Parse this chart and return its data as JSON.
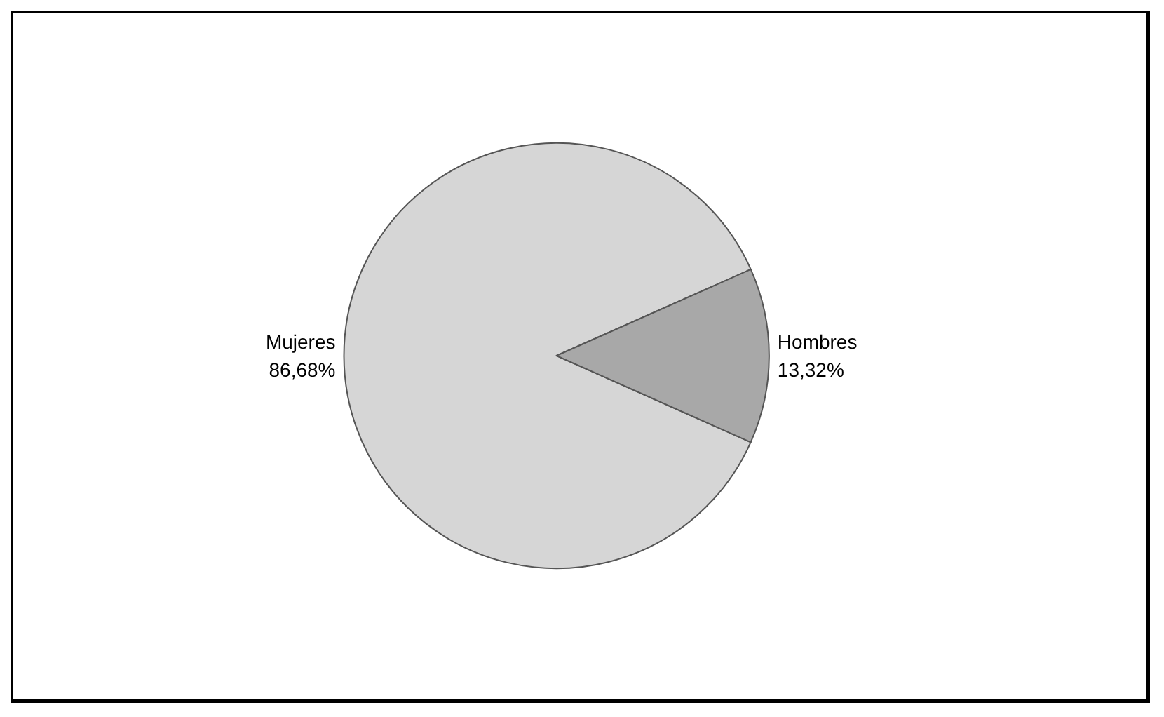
{
  "chart_data": {
    "type": "pie",
    "categories": [
      "Mujeres",
      "Hombres"
    ],
    "values": [
      86.68,
      13.32
    ],
    "value_labels": [
      "86,68%",
      "13,32%"
    ],
    "colors": [
      "#d6d6d6",
      "#a8a8a8"
    ]
  }
}
